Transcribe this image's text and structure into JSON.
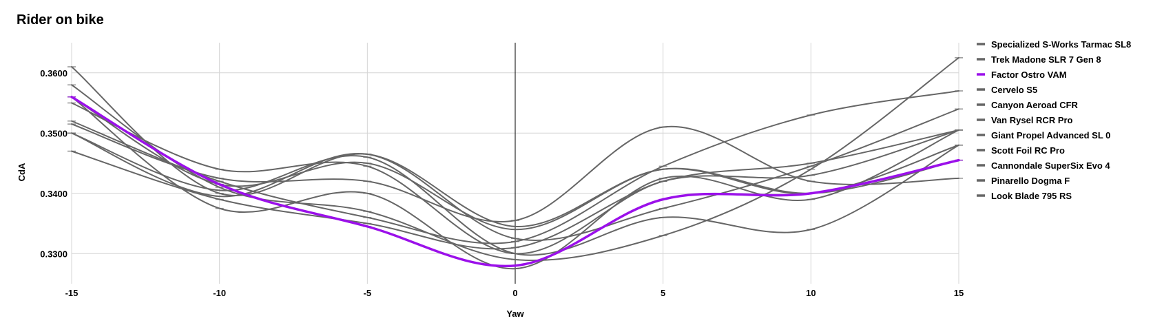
{
  "chart_data": {
    "type": "line",
    "title": "Rider on bike",
    "xlabel": "Yaw",
    "ylabel": "CdA",
    "xlim": [
      -15,
      15
    ],
    "ylim": [
      0.325,
      0.365
    ],
    "x_ticks": [
      -15,
      -10,
      -5,
      0,
      5,
      10,
      15
    ],
    "y_ticks": [
      0.33,
      0.34,
      0.35,
      0.36
    ],
    "x_tick_labels": [
      "-15",
      "-10",
      "-5",
      "0",
      "5",
      "10",
      "15"
    ],
    "y_tick_labels": [
      "0.3300",
      "0.3400",
      "0.3500",
      "0.3600"
    ],
    "grid": true,
    "legend_position": "right",
    "highlight_color": "#9b10ea",
    "base_color": "#666666",
    "x": [
      -15,
      -10,
      -5,
      0,
      5,
      10,
      15
    ],
    "series": [
      {
        "name": "Specialized S-Works Tarmac SL8",
        "values": [
          0.361,
          0.34,
          0.3465,
          0.3345,
          0.344,
          0.34,
          0.348
        ],
        "highlight": false
      },
      {
        "name": "Trek Madone SLR 7 Gen 8",
        "values": [
          0.358,
          0.341,
          0.337,
          0.329,
          0.333,
          0.344,
          0.3625
        ],
        "highlight": false
      },
      {
        "name": "Factor Ostro VAM",
        "values": [
          0.356,
          0.3415,
          0.3345,
          0.328,
          0.339,
          0.34,
          0.3455
        ],
        "highlight": true
      },
      {
        "name": "Cervelo S5",
        "values": [
          0.355,
          0.344,
          0.3445,
          0.33,
          0.342,
          0.343,
          0.3505
        ],
        "highlight": false
      },
      {
        "name": "Canyon Aeroad CFR",
        "values": [
          0.352,
          0.342,
          0.336,
          0.332,
          0.3445,
          0.353,
          0.357
        ],
        "highlight": false
      },
      {
        "name": "Van Rysel RCR Pro",
        "values": [
          0.356,
          0.3375,
          0.34,
          0.3275,
          0.3425,
          0.339,
          0.3505
        ],
        "highlight": false
      },
      {
        "name": "Giant Propel Advanced SL 0",
        "values": [
          0.35,
          0.3405,
          0.346,
          0.33,
          0.336,
          0.334,
          0.348
        ],
        "highlight": false
      },
      {
        "name": "Scott Foil RC Pro",
        "values": [
          0.347,
          0.339,
          0.335,
          0.331,
          0.342,
          0.345,
          0.3505
        ],
        "highlight": false
      },
      {
        "name": "Cannondale SuperSix Evo 4",
        "values": [
          0.3515,
          0.3425,
          0.342,
          0.3355,
          0.351,
          0.342,
          0.3425
        ],
        "highlight": false
      },
      {
        "name": "Pinarello Dogma F",
        "values": [
          0.356,
          0.3415,
          0.345,
          0.334,
          0.344,
          0.34,
          0.3455
        ],
        "highlight": false
      },
      {
        "name": "Look Blade 795 RS",
        "values": [
          0.35,
          0.3395,
          0.3465,
          0.3325,
          0.3375,
          0.3445,
          0.354
        ],
        "highlight": false
      }
    ]
  }
}
